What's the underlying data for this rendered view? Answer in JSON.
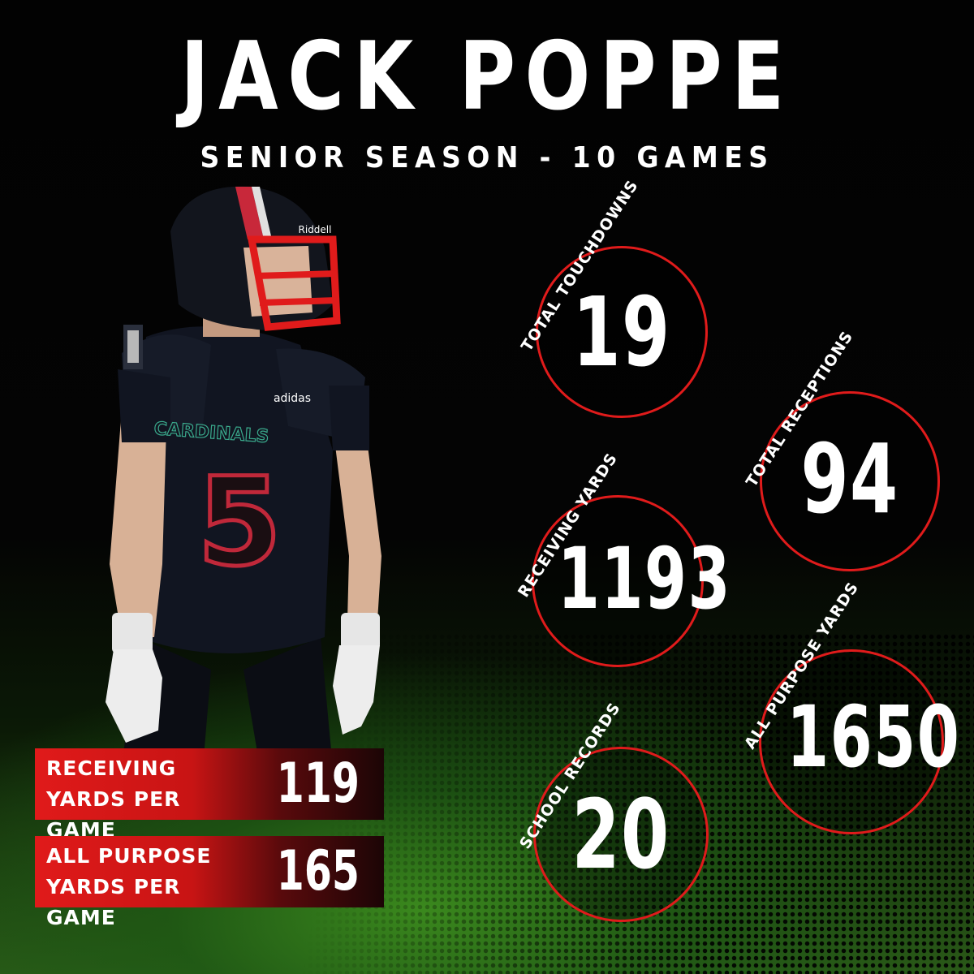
{
  "header": {
    "name": "JACK POPPE",
    "subtitle": "SENIOR SEASON - 10 GAMES"
  },
  "player": {
    "team_text": "CARDINALS",
    "jersey_number": "5",
    "helmet_brand": "Riddell",
    "jersey_brand": "adidas"
  },
  "stats": [
    {
      "label": "TOTAL TOUCHDOWNS",
      "value": "19"
    },
    {
      "label": "TOTAL RECEPTIONS",
      "value": "94"
    },
    {
      "label": "RECEIVING YARDS",
      "value": "1193"
    },
    {
      "label": "ALL PURPOSE YARDS",
      "value": "1650"
    },
    {
      "label": "SCHOOL RECORDS",
      "value": "20"
    }
  ],
  "per_game": [
    {
      "line1": "RECEIVING",
      "line2": "YARDS PER GAME",
      "value": "119"
    },
    {
      "line1": "ALL PURPOSE",
      "line2": "YARDS PER GAME",
      "value": "165"
    }
  ],
  "colors": {
    "accent_red": "#e01b1b",
    "background": "#000000",
    "field_green": "#3c8c1e"
  }
}
